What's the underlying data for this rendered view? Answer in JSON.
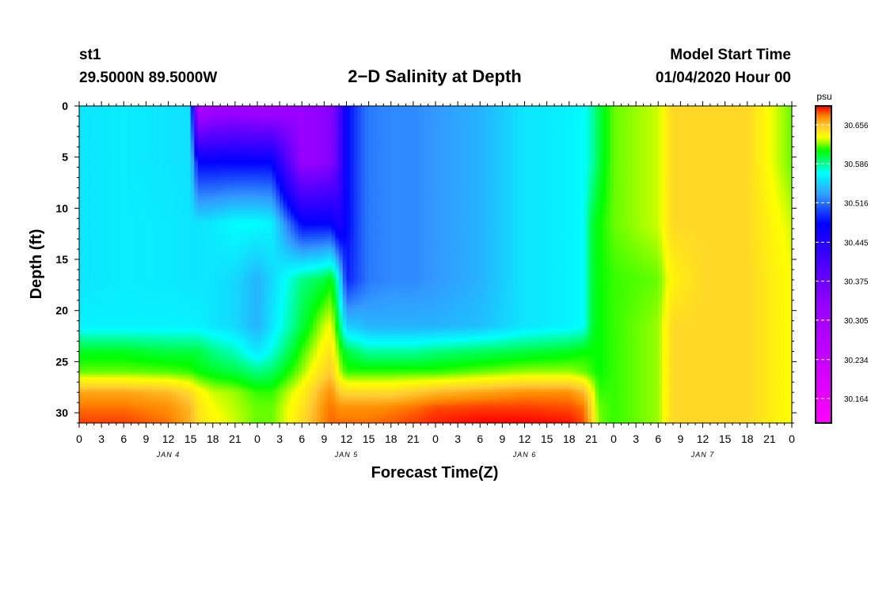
{
  "header": {
    "station": "st1",
    "location": "29.5000N 89.5000W",
    "title": "2−D Salinity at Depth",
    "model_label": "Model Start Time",
    "model_time": "01/04/2020 Hour 00"
  },
  "chart_data": {
    "type": "heatmap",
    "title": "2−D Salinity at Depth",
    "xlabel": "Forecast Time(Z)",
    "ylabel": "Depth (ft)",
    "x_tick_labels": [
      "0",
      "3",
      "6",
      "9",
      "12",
      "15",
      "18",
      "21",
      "0",
      "3",
      "6",
      "9",
      "12",
      "15",
      "18",
      "21",
      "0",
      "3",
      "6",
      "9",
      "12",
      "15",
      "18",
      "21",
      "0",
      "3",
      "6",
      "9",
      "12",
      "15",
      "18",
      "21",
      "0"
    ],
    "day_labels": [
      "JAN 4",
      "JAN 5",
      "JAN 6",
      "JAN 7"
    ],
    "x_range_hours": [
      0,
      96
    ],
    "y_ticks": [
      0,
      5,
      10,
      15,
      20,
      25,
      30
    ],
    "y_range": [
      0,
      31
    ],
    "y_inverted": true,
    "colorbar": {
      "unit": "psu",
      "range": [
        30.12,
        30.69
      ],
      "ticks": [
        "30.656",
        "30.586",
        "30.516",
        "30.445",
        "30.375",
        "30.305",
        "30.234",
        "30.164"
      ],
      "colors": [
        {
          "value": 30.12,
          "color": "#ff00ff"
        },
        {
          "value": 30.33,
          "color": "#9900ff"
        },
        {
          "value": 30.48,
          "color": "#0000ff"
        },
        {
          "value": 30.53,
          "color": "#3399ff"
        },
        {
          "value": 30.57,
          "color": "#00ffff"
        },
        {
          "value": 30.61,
          "color": "#00ff00"
        },
        {
          "value": 30.635,
          "color": "#ffff00"
        },
        {
          "value": 30.655,
          "color": "#ffcc33"
        },
        {
          "value": 30.672,
          "color": "#ff8800"
        },
        {
          "value": 30.69,
          "color": "#ff0000"
        }
      ]
    },
    "time_hours": [
      0,
      6,
      12,
      15,
      16,
      18,
      21,
      24,
      26,
      30,
      33,
      34,
      35,
      36,
      38,
      39,
      42,
      45,
      48,
      54,
      60,
      66,
      68,
      69,
      70,
      72,
      78,
      80,
      84,
      90,
      96
    ],
    "depths_ft": [
      0,
      5.5,
      11.5,
      17,
      21.5,
      24,
      26,
      28,
      29.5,
      31
    ],
    "salinity_psu": [
      [
        30.56,
        30.563,
        30.56,
        30.558,
        30.28,
        30.3,
        30.31,
        30.3,
        30.3,
        30.33,
        30.34,
        30.35,
        30.4,
        30.48,
        30.51,
        30.52,
        30.525,
        30.525,
        30.53,
        30.54,
        30.56,
        30.565,
        30.57,
        30.58,
        30.6,
        30.62,
        30.63,
        30.65,
        30.65,
        30.65,
        30.62
      ],
      [
        30.56,
        30.563,
        30.56,
        30.558,
        30.48,
        30.48,
        30.48,
        30.48,
        30.48,
        30.33,
        30.34,
        30.35,
        30.4,
        30.48,
        30.51,
        30.52,
        30.525,
        30.525,
        30.53,
        30.54,
        30.56,
        30.565,
        30.57,
        30.58,
        30.6,
        30.62,
        30.63,
        30.65,
        30.65,
        30.65,
        30.62
      ],
      [
        30.56,
        30.563,
        30.562,
        30.56,
        30.56,
        30.562,
        30.57,
        30.57,
        30.565,
        30.48,
        30.48,
        30.48,
        30.45,
        30.48,
        30.51,
        30.52,
        30.525,
        30.525,
        30.53,
        30.54,
        30.56,
        30.565,
        30.57,
        30.6,
        30.61,
        30.62,
        30.63,
        30.65,
        30.65,
        30.65,
        30.63
      ],
      [
        30.56,
        30.563,
        30.562,
        30.56,
        30.56,
        30.56,
        30.555,
        30.54,
        30.555,
        30.59,
        30.6,
        30.61,
        30.57,
        30.49,
        30.51,
        30.52,
        30.525,
        30.525,
        30.53,
        30.54,
        30.56,
        30.565,
        30.57,
        30.6,
        30.61,
        30.615,
        30.62,
        30.64,
        30.65,
        30.65,
        30.635
      ],
      [
        30.565,
        30.565,
        30.565,
        30.565,
        30.565,
        30.56,
        30.555,
        30.54,
        30.56,
        30.6,
        30.63,
        30.635,
        30.6,
        30.55,
        30.545,
        30.54,
        30.54,
        30.54,
        30.54,
        30.545,
        30.56,
        30.565,
        30.57,
        30.6,
        30.61,
        30.615,
        30.625,
        30.65,
        30.65,
        30.65,
        30.635
      ],
      [
        30.605,
        30.605,
        30.6,
        30.6,
        30.6,
        30.59,
        30.58,
        30.56,
        30.575,
        30.615,
        30.64,
        30.645,
        30.62,
        30.6,
        30.59,
        30.585,
        30.585,
        30.585,
        30.59,
        30.595,
        30.6,
        30.605,
        30.61,
        30.61,
        30.61,
        30.615,
        30.625,
        30.65,
        30.65,
        30.65,
        30.635
      ],
      [
        30.62,
        30.62,
        30.618,
        30.615,
        30.61,
        30.605,
        30.6,
        30.59,
        30.595,
        30.625,
        30.65,
        30.655,
        30.63,
        30.615,
        30.615,
        30.615,
        30.615,
        30.615,
        30.615,
        30.62,
        30.625,
        30.625,
        30.62,
        30.615,
        30.61,
        30.615,
        30.625,
        30.65,
        30.65,
        30.65,
        30.635
      ],
      [
        30.665,
        30.665,
        30.66,
        30.65,
        30.64,
        30.63,
        30.625,
        30.615,
        30.615,
        30.64,
        30.665,
        30.67,
        30.655,
        30.65,
        30.65,
        30.65,
        30.65,
        30.655,
        30.66,
        30.665,
        30.67,
        30.67,
        30.66,
        30.64,
        30.615,
        30.615,
        30.625,
        30.65,
        30.65,
        30.65,
        30.635
      ],
      [
        30.675,
        30.675,
        30.67,
        30.66,
        30.645,
        30.635,
        30.628,
        30.62,
        30.62,
        30.645,
        30.67,
        30.675,
        30.67,
        30.67,
        30.67,
        30.67,
        30.672,
        30.675,
        30.68,
        30.682,
        30.682,
        30.68,
        30.675,
        30.65,
        30.62,
        30.615,
        30.625,
        30.65,
        30.65,
        30.65,
        30.635
      ],
      [
        30.682,
        30.682,
        30.675,
        30.662,
        30.648,
        30.638,
        30.63,
        30.62,
        30.62,
        30.648,
        30.672,
        30.677,
        30.675,
        30.675,
        30.675,
        30.675,
        30.678,
        30.682,
        30.686,
        30.69,
        30.69,
        30.688,
        30.68,
        30.655,
        30.622,
        30.615,
        30.625,
        30.65,
        30.65,
        30.65,
        30.635
      ]
    ]
  }
}
